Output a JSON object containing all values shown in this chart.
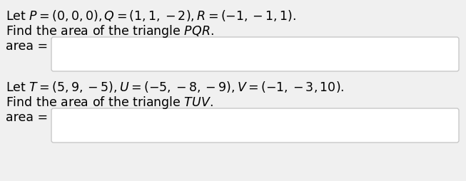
{
  "bg_color": "#f0f0f0",
  "box_color": "#ffffff",
  "box_border_color": "#c8c8c8",
  "text_color": "#000000",
  "line1_text": "Let $P = (0,0,0), Q = (1,1,-2), R = (-1,-1,1).$",
  "line2_text": "Find the area of the triangle $PQR$.",
  "line3_label": "area =",
  "line4_text": "Let $T = (5,9,-5), U = (-5,-8,-9), V = (-1,-3,10).$",
  "line5_text": "Find the area of the triangle $TUV$.",
  "line6_label": "area =",
  "fontsize_main": 12.5,
  "fontsize_label": 12.5
}
